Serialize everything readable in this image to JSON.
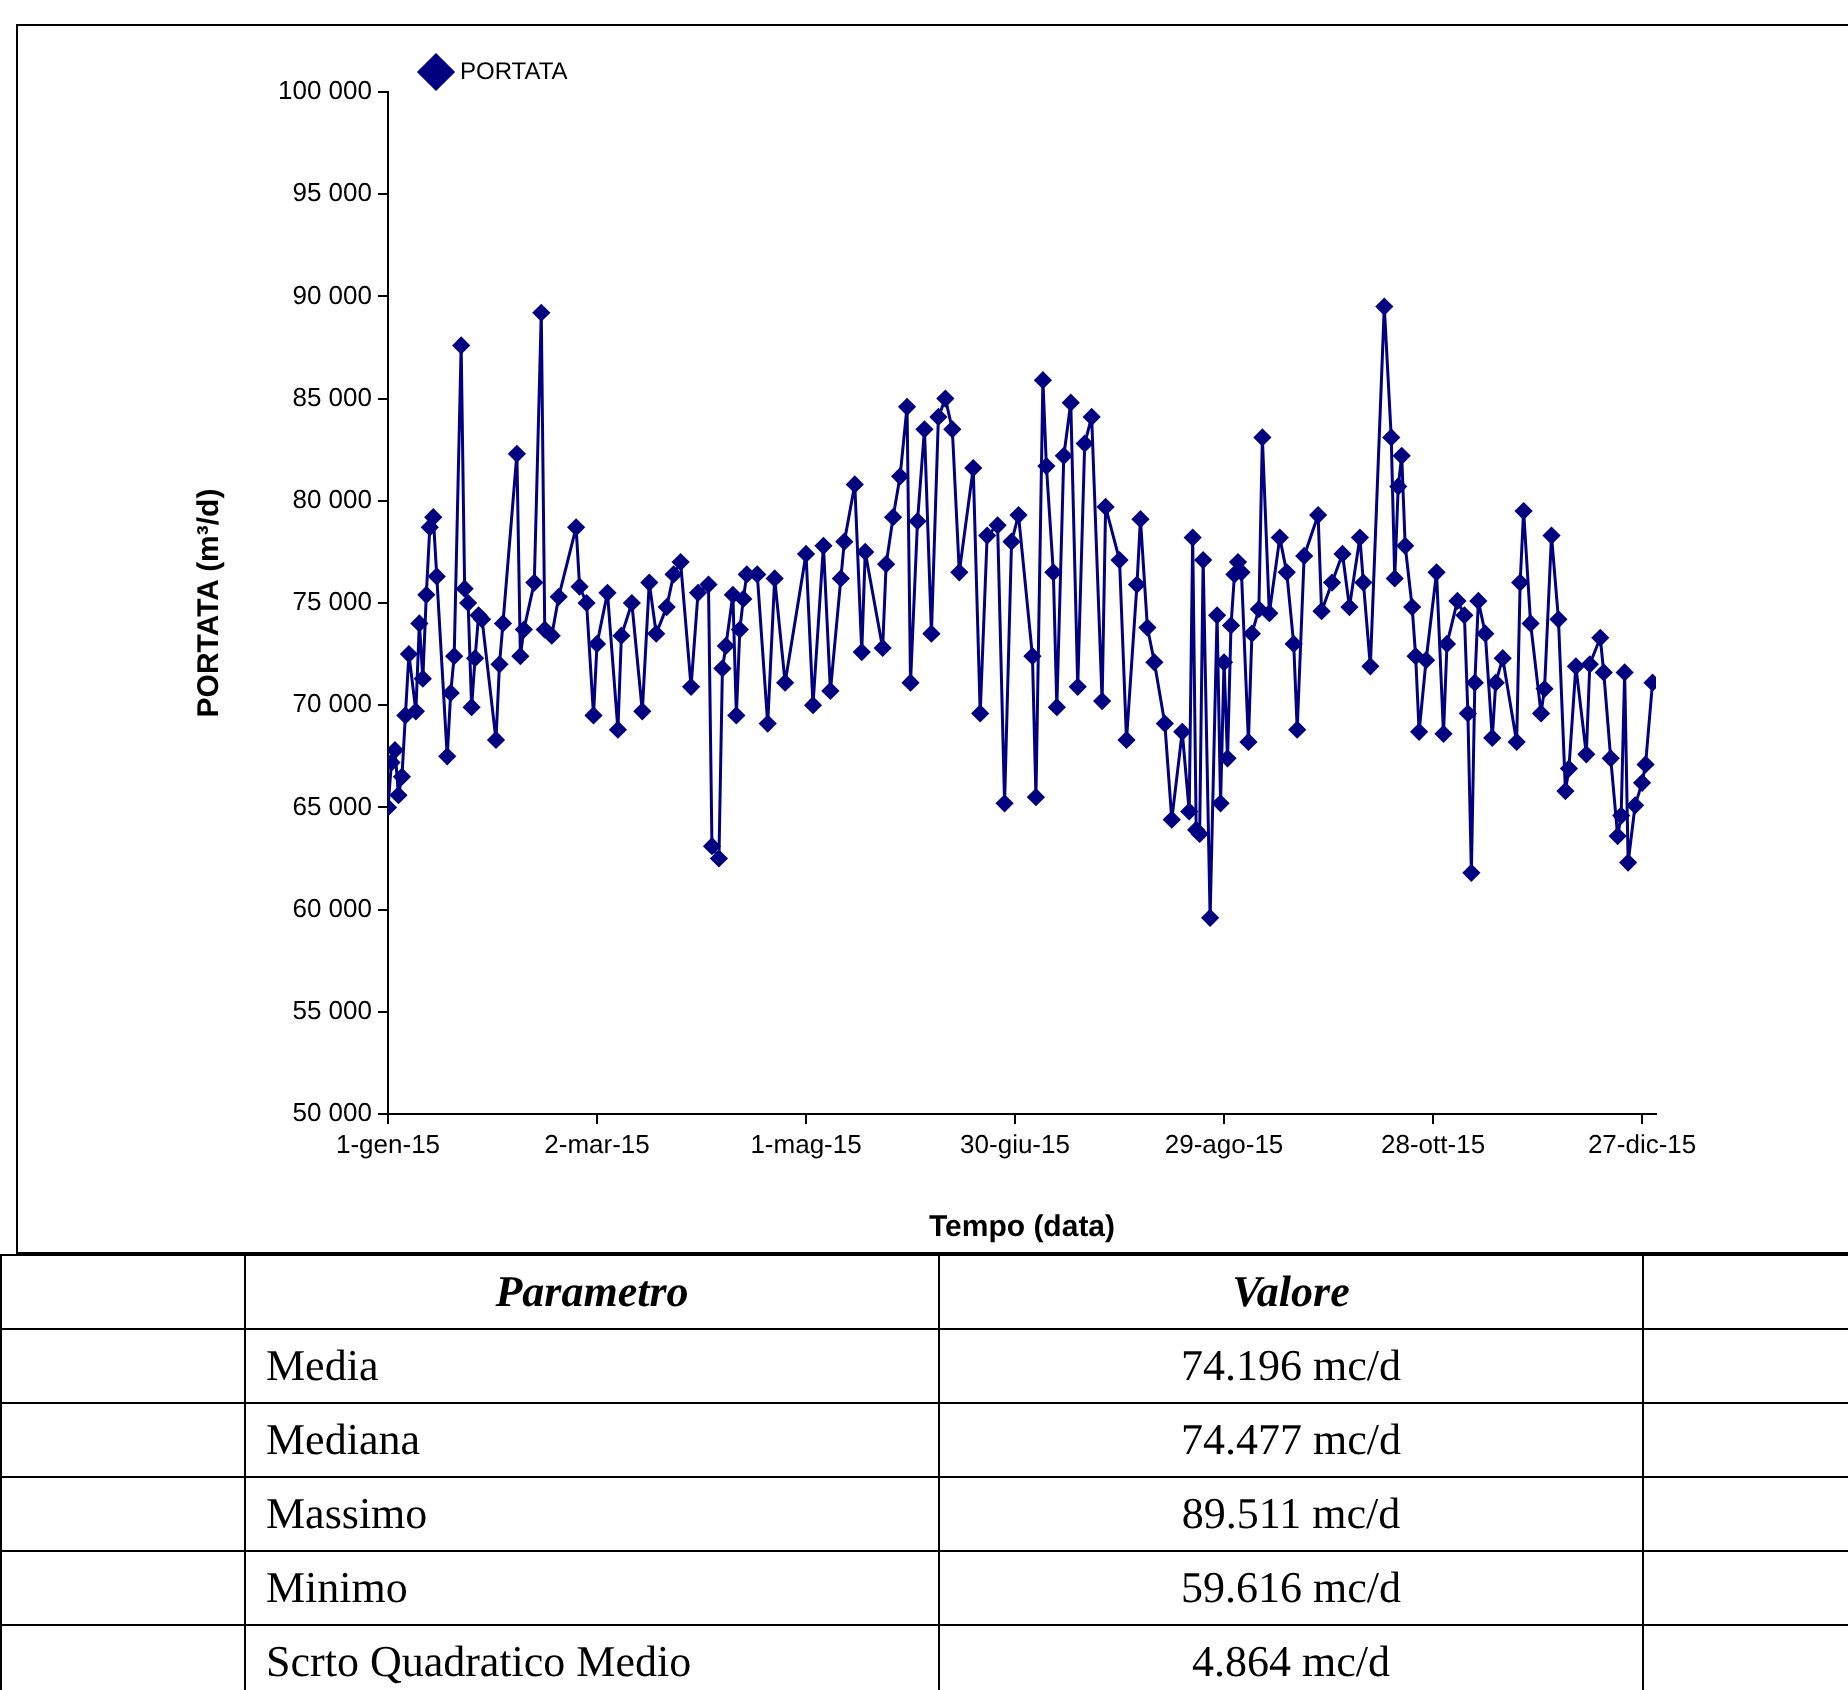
{
  "chart_data": {
    "type": "line",
    "xlabel": "Tempo (data)",
    "ylabel": "PORTATA (m³/d)",
    "x": [
      "2015-01-01",
      "2015-01-02",
      "2015-01-03",
      "2015-01-04",
      "2015-01-05",
      "2015-01-06",
      "2015-01-07",
      "2015-01-09",
      "2015-01-10",
      "2015-01-11",
      "2015-01-12",
      "2015-01-13",
      "2015-01-14",
      "2015-01-15",
      "2015-01-18",
      "2015-01-19",
      "2015-01-20",
      "2015-01-22",
      "2015-01-23",
      "2015-01-24",
      "2015-01-25",
      "2015-01-26",
      "2015-01-27",
      "2015-01-28",
      "2015-02-01",
      "2015-02-02",
      "2015-02-03",
      "2015-02-07",
      "2015-02-08",
      "2015-02-09",
      "2015-02-12",
      "2015-02-14",
      "2015-02-15",
      "2015-02-17",
      "2015-02-19",
      "2015-02-24",
      "2015-02-25",
      "2015-02-27",
      "2015-03-01",
      "2015-03-02",
      "2015-03-05",
      "2015-03-08",
      "2015-03-09",
      "2015-03-12",
      "2015-03-15",
      "2015-03-17",
      "2015-03-19",
      "2015-03-22",
      "2015-03-24",
      "2015-03-26",
      "2015-03-29",
      "2015-03-31",
      "2015-04-03",
      "2015-04-04",
      "2015-04-06",
      "2015-04-07",
      "2015-04-08",
      "2015-04-10",
      "2015-04-11",
      "2015-04-12",
      "2015-04-13",
      "2015-04-14",
      "2015-04-17",
      "2015-04-20",
      "2015-04-22",
      "2015-04-25",
      "2015-05-01",
      "2015-05-03",
      "2015-05-06",
      "2015-05-08",
      "2015-05-11",
      "2015-05-12",
      "2015-05-15",
      "2015-05-17",
      "2015-05-18",
      "2015-05-23",
      "2015-05-24",
      "2015-05-26",
      "2015-05-28",
      "2015-05-30",
      "2015-05-31",
      "2015-06-02",
      "2015-06-04",
      "2015-06-06",
      "2015-06-08",
      "2015-06-10",
      "2015-06-12",
      "2015-06-14",
      "2015-06-18",
      "2015-06-20",
      "2015-06-22",
      "2015-06-25",
      "2015-06-27",
      "2015-06-29",
      "2015-07-01",
      "2015-07-05",
      "2015-07-06",
      "2015-07-08",
      "2015-07-09",
      "2015-07-11",
      "2015-07-12",
      "2015-07-14",
      "2015-07-16",
      "2015-07-18",
      "2015-07-20",
      "2015-07-22",
      "2015-07-25",
      "2015-07-26",
      "2015-07-30",
      "2015-08-01",
      "2015-08-04",
      "2015-08-05",
      "2015-08-07",
      "2015-08-09",
      "2015-08-12",
      "2015-08-14",
      "2015-08-17",
      "2015-08-19",
      "2015-08-20",
      "2015-08-21",
      "2015-08-22",
      "2015-08-23",
      "2015-08-25",
      "2015-08-27",
      "2015-08-28",
      "2015-08-29",
      "2015-08-30",
      "2015-08-31",
      "2015-09-01",
      "2015-09-02",
      "2015-09-03",
      "2015-09-05",
      "2015-09-06",
      "2015-09-08",
      "2015-09-09",
      "2015-09-11",
      "2015-09-14",
      "2015-09-16",
      "2015-09-18",
      "2015-09-19",
      "2015-09-21",
      "2015-09-25",
      "2015-09-26",
      "2015-09-29",
      "2015-10-02",
      "2015-10-04",
      "2015-10-07",
      "2015-10-08",
      "2015-10-10",
      "2015-10-14",
      "2015-10-16",
      "2015-10-17",
      "2015-10-18",
      "2015-10-19",
      "2015-10-20",
      "2015-10-22",
      "2015-10-23",
      "2015-10-24",
      "2015-10-26",
      "2015-10-29",
      "2015-10-31",
      "2015-11-01",
      "2015-11-04",
      "2015-11-06",
      "2015-11-07",
      "2015-11-08",
      "2015-11-09",
      "2015-11-10",
      "2015-11-12",
      "2015-11-14",
      "2015-11-15",
      "2015-11-17",
      "2015-11-21",
      "2015-11-22",
      "2015-11-23",
      "2015-11-25",
      "2015-11-28",
      "2015-11-29",
      "2015-12-01",
      "2015-12-03",
      "2015-12-05",
      "2015-12-06",
      "2015-12-08",
      "2015-12-11",
      "2015-12-12",
      "2015-12-15",
      "2015-12-16",
      "2015-12-18",
      "2015-12-20",
      "2015-12-21",
      "2015-12-22",
      "2015-12-23",
      "2015-12-25",
      "2015-12-27",
      "2015-12-28",
      "2015-12-30"
    ],
    "series": [
      {
        "name": "PORTATA",
        "color": "#000080",
        "values": [
          65000,
          67200,
          67800,
          65600,
          66500,
          69500,
          72500,
          69700,
          74000,
          71300,
          75400,
          78700,
          79200,
          76300,
          67500,
          70600,
          72400,
          87600,
          75700,
          75000,
          69900,
          72300,
          74400,
          74200,
          68300,
          72000,
          74000,
          82300,
          72400,
          73700,
          76000,
          89200,
          73700,
          73400,
          75300,
          78700,
          75800,
          75000,
          69500,
          73000,
          75500,
          68800,
          73400,
          75000,
          69700,
          76000,
          73500,
          74800,
          76400,
          77000,
          70900,
          75500,
          75900,
          63100,
          62500,
          71800,
          72900,
          75400,
          69500,
          73700,
          75200,
          76400,
          76400,
          69100,
          76200,
          71100,
          77400,
          70000,
          77800,
          70700,
          76200,
          78000,
          80800,
          72600,
          77500,
          72800,
          76900,
          79200,
          81200,
          84600,
          71100,
          79000,
          83500,
          73500,
          84100,
          85000,
          83500,
          76500,
          81600,
          69600,
          78300,
          78800,
          65200,
          78000,
          79300,
          72400,
          65500,
          85900,
          81700,
          76500,
          69900,
          82200,
          84800,
          70900,
          82800,
          84100,
          70200,
          79700,
          77100,
          68300,
          75900,
          79100,
          73800,
          72100,
          69100,
          64400,
          68700,
          64800,
          78200,
          63900,
          63700,
          77100,
          59600,
          74400,
          65200,
          72100,
          67400,
          73900,
          76400,
          77000,
          76500,
          68200,
          73500,
          74700,
          83100,
          74500,
          78200,
          76500,
          73000,
          68800,
          77300,
          79300,
          74600,
          76000,
          77400,
          74800,
          78200,
          76000,
          71900,
          89500,
          83100,
          76200,
          80700,
          82200,
          77800,
          74800,
          72400,
          68700,
          72200,
          76500,
          68600,
          73000,
          75100,
          74400,
          69600,
          61800,
          71100,
          75100,
          73500,
          68400,
          71100,
          72300,
          68200,
          76000,
          79500,
          74000,
          69600,
          70800,
          78300,
          74200,
          65800,
          66900,
          71900,
          67600,
          72000,
          73300,
          71600,
          67400,
          63600,
          64600,
          71600,
          62300,
          65100,
          66200,
          67100,
          71100
        ]
      }
    ],
    "xlim": [
      "2015-01-01",
      "2015-12-31"
    ],
    "xticks": [
      {
        "value": "2015-01-01",
        "label": "1-gen-15"
      },
      {
        "value": "2015-03-02",
        "label": "2-mar-15"
      },
      {
        "value": "2015-05-01",
        "label": "1-mag-15"
      },
      {
        "value": "2015-06-30",
        "label": "30-giu-15"
      },
      {
        "value": "2015-08-29",
        "label": "29-ago-15"
      },
      {
        "value": "2015-10-28",
        "label": "28-ott-15"
      },
      {
        "value": "2015-12-27",
        "label": "27-dic-15"
      }
    ],
    "ylim": [
      50000,
      100000
    ],
    "yticks": [
      {
        "value": 50000,
        "label": "50 000"
      },
      {
        "value": 55000,
        "label": "55 000"
      },
      {
        "value": 60000,
        "label": "60 000"
      },
      {
        "value": 65000,
        "label": "65 000"
      },
      {
        "value": 70000,
        "label": "70 000"
      },
      {
        "value": 75000,
        "label": "75 000"
      },
      {
        "value": 80000,
        "label": "80 000"
      },
      {
        "value": 85000,
        "label": "85 000"
      },
      {
        "value": 90000,
        "label": "90 000"
      },
      {
        "value": 95000,
        "label": "95 000"
      },
      {
        "value": 100000,
        "label": "100 000"
      }
    ],
    "grid": false,
    "legend": "top left",
    "marker": "diamond",
    "line_style": "solid",
    "annotations": [
      "Parametro",
      "Valore",
      "Media",
      "74.196 mc/d",
      "Mediana",
      "74.477 mc/d",
      "Massimo",
      "89.511 mc/d",
      "Minimo",
      "59.616 mc/d",
      "Scrto Quadratico Medio",
      "4.864 mc/d"
    ]
  }
}
